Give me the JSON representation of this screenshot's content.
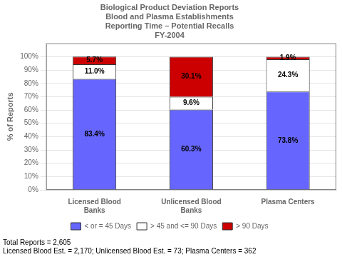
{
  "chart_data": {
    "type": "bar",
    "title": "Biological Product Deviation Reports\nBlood and Plasma Establishments\nReporting Time – Potential Recalls\nFY-2004",
    "categories": [
      "Licensed Blood\nBanks",
      "Unlicensed Blood\nBanks",
      "Plasma Centers"
    ],
    "stacked": true,
    "series": [
      {
        "name": "< or = 45 Days",
        "color": "#6666ff",
        "values": [
          83.4,
          60.3,
          73.8
        ],
        "value_labels": [
          "83.4%",
          "60.3%",
          "73.8%"
        ]
      },
      {
        "name": "> 45 and <= 90 Days",
        "color": "#ffffff",
        "values": [
          11.0,
          9.6,
          24.3
        ],
        "value_labels": [
          "11.0%",
          "9.6%",
          "24.3%"
        ]
      },
      {
        "name": "> 90 Days",
        "color": "#cc0000",
        "values": [
          5.7,
          30.1,
          1.9
        ],
        "value_labels": [
          "5.7%",
          "30.1%",
          "1.9%"
        ]
      }
    ],
    "data_labels": true,
    "ylabel": "% of Reports",
    "ylim": [
      0,
      110
    ],
    "yticks": [
      {
        "value": 0,
        "label": "0%"
      },
      {
        "value": 10,
        "label": "10%"
      },
      {
        "value": 20,
        "label": "20%"
      },
      {
        "value": 30,
        "label": "30%"
      },
      {
        "value": 40,
        "label": "40%"
      },
      {
        "value": 50,
        "label": "50%"
      },
      {
        "value": 60,
        "label": "60%"
      },
      {
        "value": 70,
        "label": "70%"
      },
      {
        "value": 80,
        "label": "80%"
      },
      {
        "value": 90,
        "label": "90%"
      },
      {
        "value": 100,
        "label": "100%"
      }
    ],
    "grid": true,
    "legend": "bottom",
    "annotations": [
      "Total Reports = 2,605",
      "Licensed Blood Est. = 2,170; Unlicensed Blood Est. = 73; Plasma Centers = 362"
    ]
  }
}
